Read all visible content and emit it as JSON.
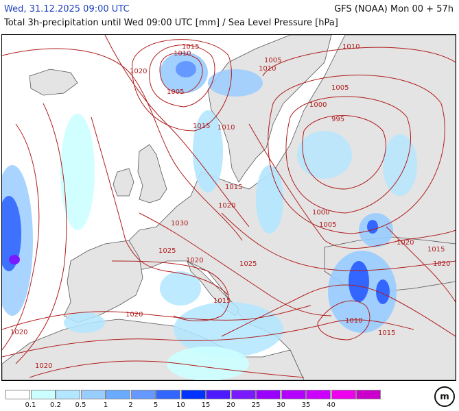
{
  "header": {
    "datetime": "Wed, 31.12.2025 09:00 UTC",
    "model_run": "GFS (NOAA) Mon 00 + 57h",
    "subtitle": "Total 3h-precipitation until Wed 09:00 UTC [mm] / Sea Level Pressure [hPa]"
  },
  "isobar_labels": [
    {
      "text": "1015"
    },
    {
      "text": "1010"
    },
    {
      "text": "1020"
    },
    {
      "text": "1005"
    },
    {
      "text": "1010"
    },
    {
      "text": "1005"
    },
    {
      "text": "1010"
    },
    {
      "text": "1005"
    },
    {
      "text": "1000"
    },
    {
      "text": "995"
    },
    {
      "text": "1015"
    },
    {
      "text": "1010"
    },
    {
      "text": "1015"
    },
    {
      "text": "1020"
    },
    {
      "text": "1000"
    },
    {
      "text": "1005"
    },
    {
      "text": "1030"
    },
    {
      "text": "1025"
    },
    {
      "text": "1020"
    },
    {
      "text": "1025"
    },
    {
      "text": "1020"
    },
    {
      "text": "1015"
    },
    {
      "text": "1015"
    },
    {
      "text": "1020"
    },
    {
      "text": "1010"
    },
    {
      "text": "1020"
    },
    {
      "text": "1020"
    },
    {
      "text": "1015"
    },
    {
      "text": "1020"
    }
  ],
  "legend": {
    "colors": [
      "#ffffff",
      "#ccffff",
      "#b3e6ff",
      "#99ccff",
      "#6aaaff",
      "#6699ff",
      "#3366ff",
      "#0033ff",
      "#4d1aff",
      "#7a1aff",
      "#9900ff",
      "#b300ff",
      "#cc00ff",
      "#ee00ee",
      "#cc00cc"
    ],
    "ticks": [
      "0.1",
      "0.2",
      "0.5",
      "1",
      "2",
      "5",
      "10",
      "15",
      "20",
      "25",
      "30",
      "35",
      "40"
    ]
  },
  "logo": {
    "text": "m"
  },
  "colors": {
    "land": "#e4e4e4",
    "sea": "#ffffff",
    "isobar": "#b01c1c",
    "coast": "#555555"
  }
}
